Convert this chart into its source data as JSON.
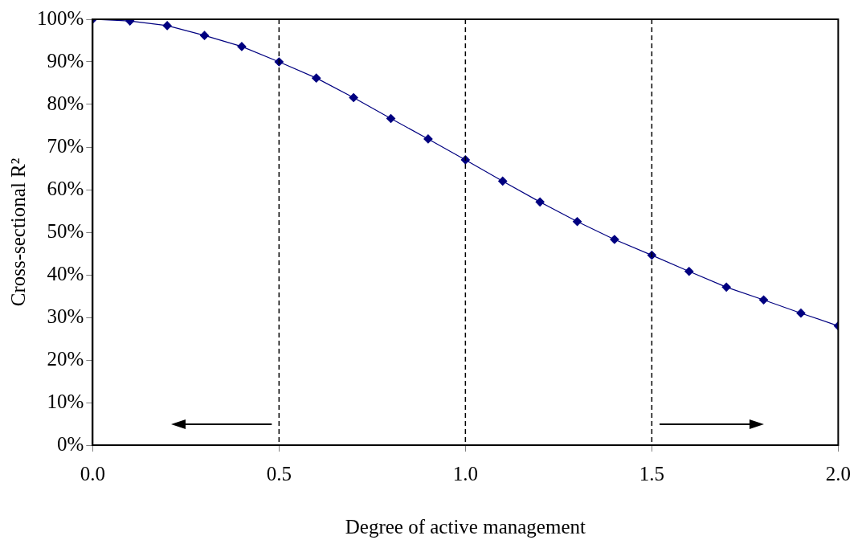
{
  "chart_data": {
    "type": "line",
    "xlabel": "Degree of active management",
    "ylabel": "Cross-sectional R²",
    "x": [
      0,
      0.1,
      0.2,
      0.3,
      0.4,
      0.5,
      0.6,
      0.7,
      0.8,
      0.9,
      1.0,
      1.1,
      1.2,
      1.3,
      1.4,
      1.5,
      1.6,
      1.7,
      1.8,
      1.9,
      2.0
    ],
    "series": [
      {
        "color": "#000080",
        "values": [
          100,
          99.6,
          98.5,
          96.2,
          93.6,
          90,
          86.2,
          81.6,
          76.7,
          71.9,
          67.0,
          62.0,
          57.1,
          52.5,
          48.3,
          44.6,
          40.8,
          37.1,
          34.1,
          31.0,
          28.0
        ]
      }
    ],
    "xlim": [
      0,
      2
    ],
    "xticks": [
      {
        "value": 0,
        "label": "0.0"
      },
      {
        "value": 0.5,
        "label": "0.5"
      },
      {
        "value": 1,
        "label": "1.0"
      },
      {
        "value": 1.5,
        "label": "1.5"
      },
      {
        "value": 2,
        "label": "2.0"
      }
    ],
    "ylim": [
      0,
      100
    ],
    "yticks": [
      {
        "value": 0,
        "label": "0%"
      },
      {
        "value": 10,
        "label": "10%"
      },
      {
        "value": 20,
        "label": "20%"
      },
      {
        "value": 30,
        "label": "30%"
      },
      {
        "value": 40,
        "label": "40%"
      },
      {
        "value": 50,
        "label": "50%"
      },
      {
        "value": 60,
        "label": "60%"
      },
      {
        "value": 70,
        "label": "70%"
      },
      {
        "value": 80,
        "label": "80%"
      },
      {
        "value": 90,
        "label": "90%"
      },
      {
        "value": 100,
        "label": "100%"
      }
    ],
    "ref_lines": [
      {
        "axis": "x",
        "value": 0.5,
        "color": "#000000",
        "line_style": "dashed"
      },
      {
        "axis": "x",
        "value": 1.0,
        "color": "#000000",
        "line_style": "dashed"
      },
      {
        "axis": "x",
        "value": 1.5,
        "color": "#000000",
        "line_style": "dashed"
      }
    ],
    "grid": false,
    "legend": false,
    "marker": "diamond",
    "line_style": "solid"
  }
}
